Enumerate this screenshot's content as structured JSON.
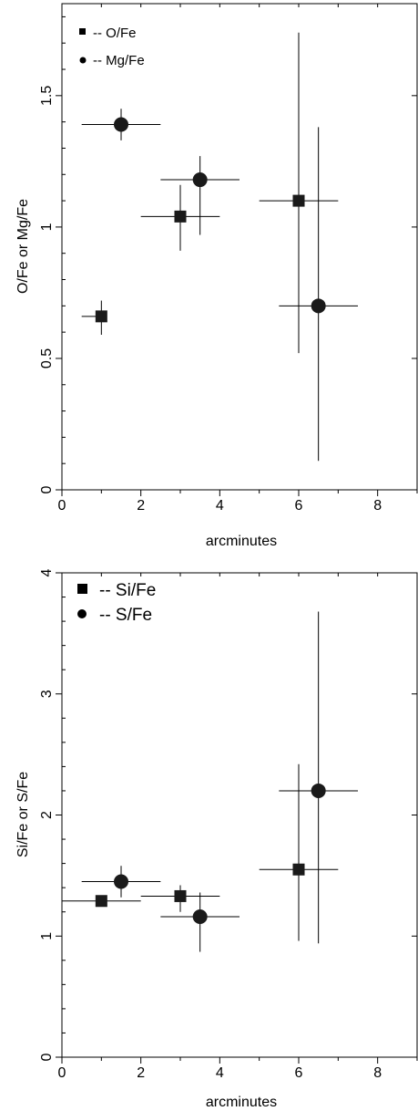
{
  "chart_data": [
    {
      "type": "scatter",
      "xlabel": "arcminutes",
      "ylabel": "O/Fe or Mg/Fe",
      "xlim": [
        0,
        9
      ],
      "ylim": [
        0,
        1.85
      ],
      "xticks": [
        "0",
        "2",
        "4",
        "6",
        "8"
      ],
      "yticks": [
        "0",
        "0.5",
        "1",
        "1.5"
      ],
      "series": [
        {
          "name": "-- O/Fe",
          "marker": "square",
          "points": [
            {
              "x": 1.0,
              "y": 0.66,
              "xerr": [
                0.5,
                1.0
              ],
              "yerr": [
                0.59,
                0.72
              ]
            },
            {
              "x": 3.0,
              "y": 1.04,
              "xerr": [
                2.0,
                4.0
              ],
              "yerr": [
                0.91,
                1.16
              ]
            },
            {
              "x": 6.0,
              "y": 1.1,
              "xerr": [
                5.0,
                7.0
              ],
              "yerr": [
                0.52,
                1.74
              ]
            }
          ]
        },
        {
          "name": "-- Mg/Fe",
          "marker": "circle",
          "points": [
            {
              "x": 1.5,
              "y": 1.39,
              "xerr": [
                0.5,
                2.5
              ],
              "yerr": [
                1.33,
                1.45
              ]
            },
            {
              "x": 3.5,
              "y": 1.18,
              "xerr": [
                2.5,
                4.5
              ],
              "yerr": [
                0.97,
                1.27
              ]
            },
            {
              "x": 6.5,
              "y": 0.7,
              "xerr": [
                5.5,
                7.5
              ],
              "yerr": [
                0.11,
                1.38
              ]
            }
          ]
        }
      ]
    },
    {
      "type": "scatter",
      "xlabel": "arcminutes",
      "ylabel": "Si/Fe or S/Fe",
      "xlim": [
        0,
        9
      ],
      "ylim": [
        0,
        4
      ],
      "xticks": [
        "0",
        "2",
        "4",
        "6",
        "8"
      ],
      "yticks": [
        "0",
        "1",
        "2",
        "3",
        "4"
      ],
      "series": [
        {
          "name": "-- Si/Fe",
          "marker": "square",
          "points": [
            {
              "x": 1.0,
              "y": 1.29,
              "xerr": [
                0.0,
                2.0
              ],
              "yerr": [
                1.29,
                1.29
              ]
            },
            {
              "x": 3.0,
              "y": 1.33,
              "xerr": [
                2.0,
                4.0
              ],
              "yerr": [
                1.2,
                1.42
              ]
            },
            {
              "x": 6.0,
              "y": 1.55,
              "xerr": [
                5.0,
                7.0
              ],
              "yerr": [
                0.96,
                2.42
              ]
            }
          ]
        },
        {
          "name": "-- S/Fe",
          "marker": "circle",
          "points": [
            {
              "x": 1.5,
              "y": 1.45,
              "xerr": [
                0.5,
                2.5
              ],
              "yerr": [
                1.32,
                1.58
              ]
            },
            {
              "x": 3.5,
              "y": 1.16,
              "xerr": [
                2.5,
                4.5
              ],
              "yerr": [
                0.87,
                1.36
              ]
            },
            {
              "x": 6.5,
              "y": 2.2,
              "xerr": [
                5.5,
                7.5
              ],
              "yerr": [
                0.94,
                3.68
              ]
            }
          ]
        }
      ]
    }
  ]
}
